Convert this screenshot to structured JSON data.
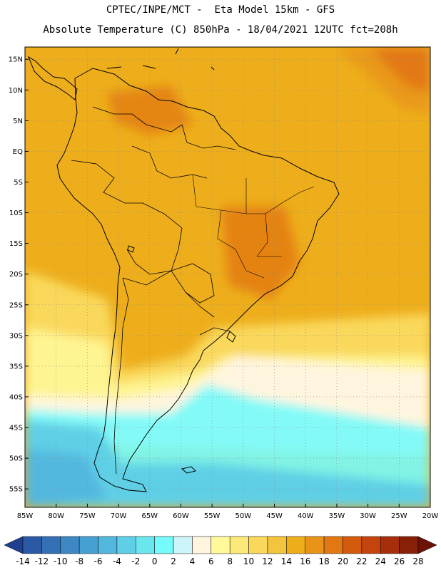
{
  "header": {
    "line1": "CPTEC/INPE/MCT -  Eta Model 15km - GFS",
    "line2": "Absolute Temperature (C) 850hPa - 18/04/2021 12UTC fct=208h"
  },
  "map": {
    "lon_range": [
      -85,
      -20
    ],
    "lat_range": [
      -58,
      17
    ],
    "lat_ticks": [
      {
        "value": 15,
        "label": "15N"
      },
      {
        "value": 10,
        "label": "10N"
      },
      {
        "value": 5,
        "label": "5N"
      },
      {
        "value": 0,
        "label": "EQ"
      },
      {
        "value": -5,
        "label": "5S"
      },
      {
        "value": -10,
        "label": "10S"
      },
      {
        "value": -15,
        "label": "15S"
      },
      {
        "value": -20,
        "label": "20S"
      },
      {
        "value": -25,
        "label": "25S"
      },
      {
        "value": -30,
        "label": "30S"
      },
      {
        "value": -35,
        "label": "35S"
      },
      {
        "value": -40,
        "label": "40S"
      },
      {
        "value": -45,
        "label": "45S"
      },
      {
        "value": -50,
        "label": "50S"
      },
      {
        "value": -55,
        "label": "55S"
      }
    ],
    "lon_ticks": [
      {
        "value": -85,
        "label": "85W"
      },
      {
        "value": -80,
        "label": "80W"
      },
      {
        "value": -75,
        "label": "75W"
      },
      {
        "value": -70,
        "label": "70W"
      },
      {
        "value": -65,
        "label": "65W"
      },
      {
        "value": -60,
        "label": "60W"
      },
      {
        "value": -55,
        "label": "55W"
      },
      {
        "value": -50,
        "label": "50W"
      },
      {
        "value": -45,
        "label": "45W"
      },
      {
        "value": -40,
        "label": "40W"
      },
      {
        "value": -35,
        "label": "35W"
      },
      {
        "value": -30,
        "label": "30W"
      },
      {
        "value": -25,
        "label": "25W"
      },
      {
        "value": -20,
        "label": "20W"
      }
    ],
    "gridlines": true
  },
  "colorbar": {
    "labels": [
      "-14",
      "-12",
      "-10",
      "-8",
      "-6",
      "-4",
      "-2",
      "0",
      "2",
      "4",
      "6",
      "8",
      "10",
      "12",
      "14",
      "16",
      "18",
      "20",
      "22",
      "24",
      "26",
      "28"
    ],
    "colors": [
      "#1f3f8f",
      "#2a5aa6",
      "#3370b5",
      "#3d87c4",
      "#47a0d2",
      "#52b8de",
      "#5ecfe6",
      "#6ae6ee",
      "#75fbfb",
      "#cdf4f8",
      "#fff5de",
      "#fff99a",
      "#fde97a",
      "#f9d85c",
      "#f3c43d",
      "#eeae1c",
      "#e99418",
      "#e27813",
      "#d45a0e",
      "#c5430c",
      "#a62e0a",
      "#882008",
      "#6d1207"
    ]
  }
}
